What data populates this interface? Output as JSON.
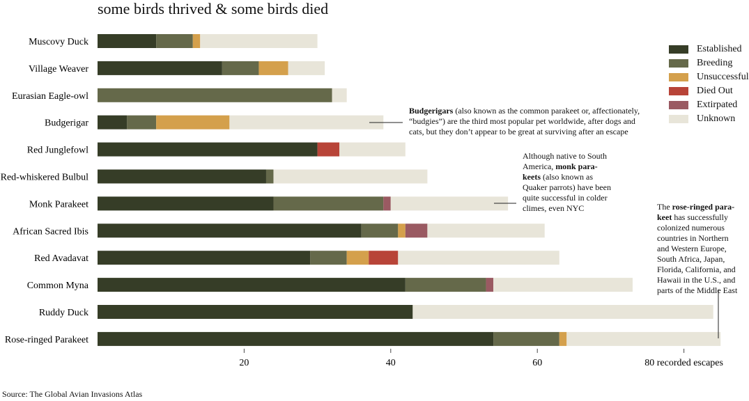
{
  "title": "some birds thrived & some birds died",
  "source": "Source: The Global Avian Invasions Atlas",
  "chart_data": {
    "type": "bar",
    "orientation": "horizontal",
    "stacked": true,
    "title": "some birds thrived & some birds died",
    "categories": [
      "Muscovy Duck",
      "Village Weaver",
      "Eurasian Eagle-owl",
      "Budgerigar",
      "Red Junglefowl",
      "Red-whiskered Bulbul",
      "Monk Parakeet",
      "African Sacred Ibis",
      "Red Avadavat",
      "Common Myna",
      "Ruddy Duck",
      "Rose-ringed Parakeet"
    ],
    "series": [
      {
        "name": "Established",
        "color": "#363d27",
        "values": [
          8,
          17,
          0,
          4,
          30,
          23,
          24,
          36,
          29,
          42,
          43,
          54
        ]
      },
      {
        "name": "Breeding",
        "color": "#65694a",
        "values": [
          5,
          5,
          32,
          4,
          0,
          1,
          15,
          5,
          5,
          11,
          0,
          9
        ]
      },
      {
        "name": "Unsuccessful",
        "color": "#d4a04c",
        "values": [
          1,
          4,
          0,
          10,
          0,
          0,
          0,
          1,
          3,
          0,
          0,
          1
        ]
      },
      {
        "name": "Died Out",
        "color": "#b84438",
        "values": [
          0,
          0,
          0,
          0,
          3,
          0,
          0,
          0,
          4,
          0,
          0,
          0
        ]
      },
      {
        "name": "Extirpated",
        "color": "#9a5a62",
        "values": [
          0,
          0,
          0,
          0,
          0,
          0,
          1,
          3,
          0,
          1,
          0,
          0
        ]
      },
      {
        "name": "Unknown",
        "color": "#e8e5d9",
        "values": [
          16,
          5,
          2,
          21,
          9,
          21,
          16,
          16,
          22,
          19,
          41,
          21
        ]
      }
    ],
    "xticks": [
      {
        "value": 20,
        "label": "20"
      },
      {
        "value": 40,
        "label": "40"
      },
      {
        "value": 60,
        "label": "60"
      },
      {
        "value": 80,
        "label": "80 recorded escapes"
      }
    ],
    "xlim": [
      0,
      85
    ],
    "legend_position": "right",
    "grid": false
  },
  "annotations": {
    "budgerigar": {
      "bold": "Budgerigars",
      "text": " (also known as the common parakeet or, affectionately, “budgies”) are the third most popular pet worldwide, after dogs and cats, but they don’t appear to be great at surviving after an escape"
    },
    "monk": {
      "pre": "Although native to South America, ",
      "bold": "monk para-keets",
      "text": " (also known as Quaker parrots) have been quite successful in colder climes, even NYC"
    },
    "rose": {
      "pre": "The ",
      "bold": "rose-ringed para-keet",
      "text": " has successfully colonized numerous countries in Northern and Western Europe, South Africa, Japan, Florida, California, and Hawaii in the U.S., and parts of the Middle East"
    }
  }
}
